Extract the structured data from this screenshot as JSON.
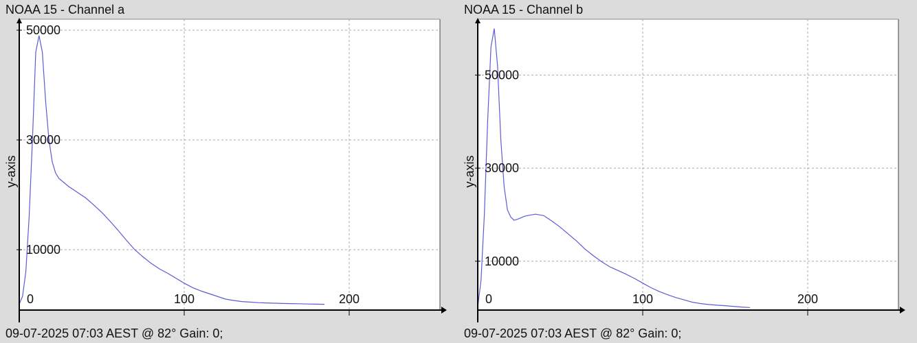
{
  "chart_data": [
    {
      "type": "line",
      "title": "NOAA 15 - Channel a",
      "ylabel": "y-axis",
      "xlabel": "",
      "footer": "09-07-2025 07:03 AEST @ 82° Gain: 0;",
      "xlim": [
        0,
        255
      ],
      "ylim": [
        -1000,
        52000
      ],
      "x_ticks": [
        0,
        100,
        200
      ],
      "y_ticks": [
        10000,
        30000,
        50000
      ],
      "grid": true,
      "line_color": "#5b5bd6",
      "series": [
        {
          "x": [
            0,
            2,
            4,
            6,
            8,
            10,
            12,
            14,
            16,
            18,
            20,
            22,
            24,
            26,
            28,
            30,
            35,
            40,
            45,
            50,
            55,
            60,
            65,
            70,
            75,
            80,
            85,
            90,
            95,
            100,
            105,
            110,
            115,
            120,
            125,
            130,
            135,
            140,
            145,
            150,
            155,
            160,
            165,
            170,
            175,
            180,
            185
          ],
          "y": [
            100,
            1500,
            6000,
            16000,
            30000,
            46000,
            49000,
            46000,
            37000,
            30000,
            26000,
            24000,
            23000,
            22500,
            22000,
            21500,
            20500,
            19500,
            18200,
            16800,
            15200,
            13500,
            11700,
            10000,
            8700,
            7500,
            6500,
            5700,
            4800,
            3900,
            3100,
            2500,
            2000,
            1500,
            1000,
            750,
            550,
            450,
            350,
            300,
            250,
            200,
            180,
            150,
            100,
            80,
            50
          ]
        }
      ]
    },
    {
      "type": "line",
      "title": "NOAA 15 - Channel b",
      "ylabel": "y-axis",
      "xlabel": "",
      "footer": "09-07-2025 07:03 AEST @ 82° Gain: 0;",
      "xlim": [
        0,
        255
      ],
      "ylim": [
        -500,
        62000
      ],
      "x_ticks": [
        0,
        100,
        200
      ],
      "y_ticks": [
        10000,
        30000,
        50000
      ],
      "grid": true,
      "line_color": "#5b5bd6",
      "series": [
        {
          "x": [
            0,
            2,
            4,
            6,
            8,
            10,
            12,
            14,
            16,
            18,
            20,
            22,
            24,
            26,
            28,
            30,
            35,
            40,
            45,
            50,
            55,
            60,
            65,
            70,
            75,
            80,
            85,
            90,
            95,
            100,
            105,
            110,
            115,
            120,
            125,
            130,
            135,
            140,
            145,
            150,
            155,
            160,
            165
          ],
          "y": [
            200,
            6000,
            20000,
            40000,
            56000,
            60000,
            52000,
            36000,
            26000,
            21000,
            19500,
            18800,
            19000,
            19300,
            19600,
            19800,
            20100,
            19800,
            18600,
            17300,
            15800,
            14300,
            12600,
            11200,
            9900,
            8800,
            8000,
            7200,
            6300,
            5300,
            4300,
            3500,
            2800,
            2200,
            1700,
            1200,
            900,
            700,
            550,
            450,
            300,
            150,
            50
          ]
        }
      ]
    }
  ]
}
